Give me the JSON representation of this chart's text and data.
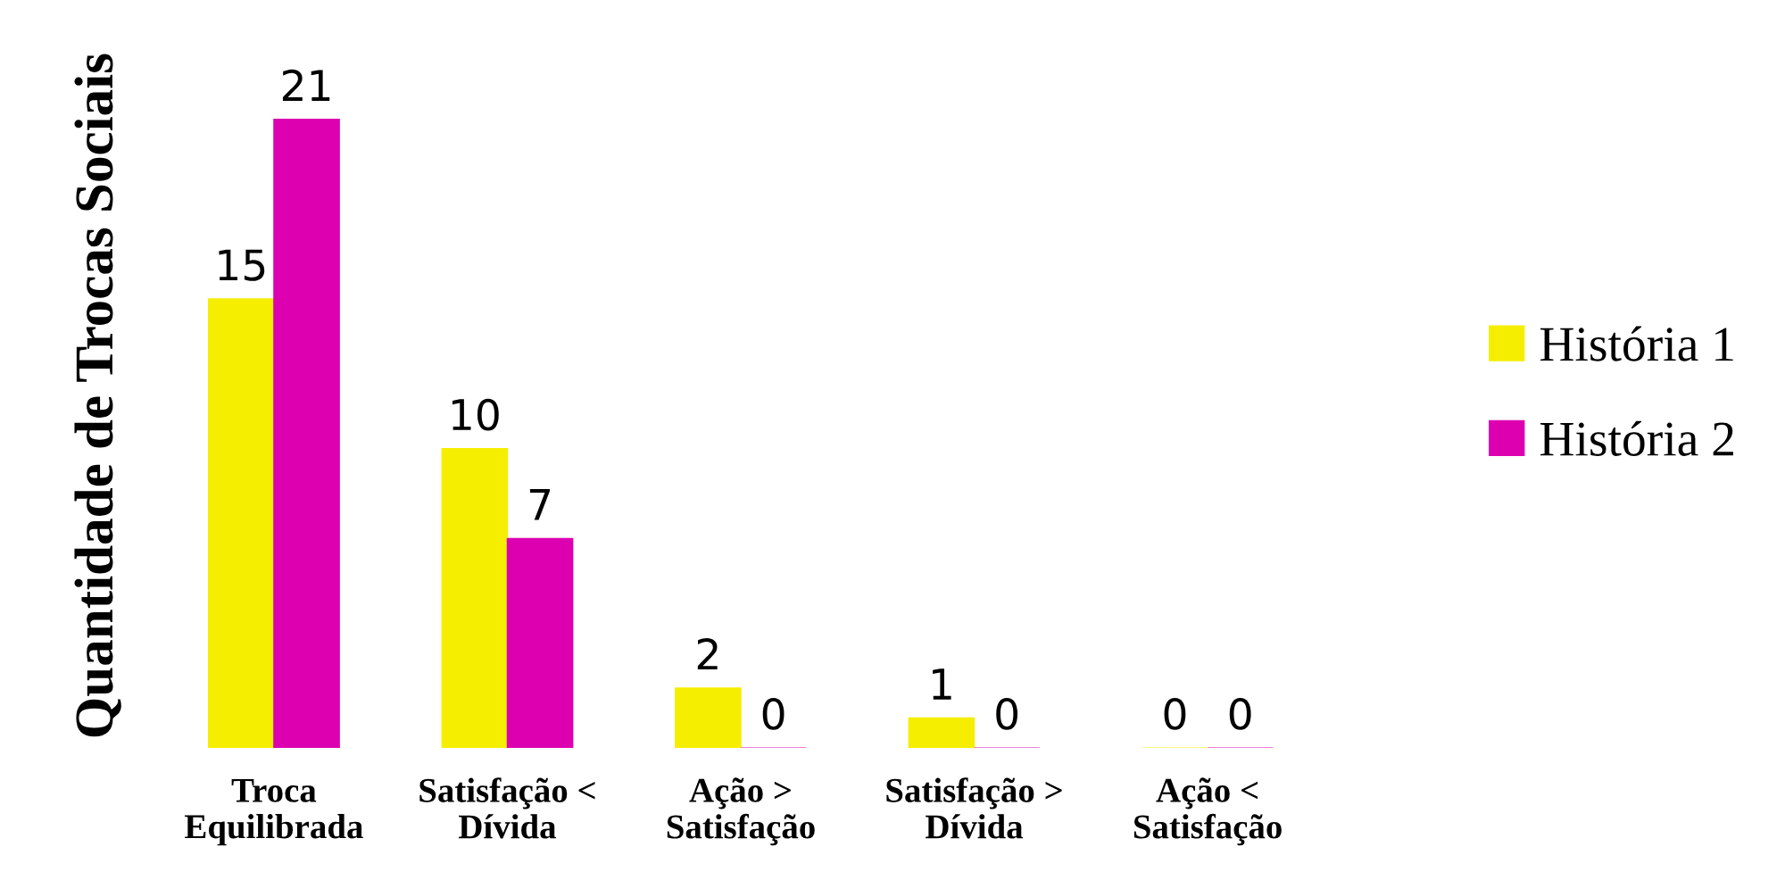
{
  "chart_data": {
    "type": "bar",
    "ylabel": "Quantidade de Trocas Sociais",
    "categories": [
      "Troca\nEquilibrada",
      "Satisfação <\nDívida",
      "Ação >\nSatisfação",
      "Satisfação >\nDívida",
      "Ação <\nSatisfação"
    ],
    "series": [
      {
        "name": "História 1",
        "color": "#f5ee00",
        "values": [
          15,
          10,
          2,
          1,
          0
        ]
      },
      {
        "name": "História 2",
        "color": "#dc00b0",
        "values": [
          21,
          7,
          0,
          0,
          0
        ]
      }
    ],
    "data_labels": true,
    "legend": "right",
    "grid": false
  }
}
